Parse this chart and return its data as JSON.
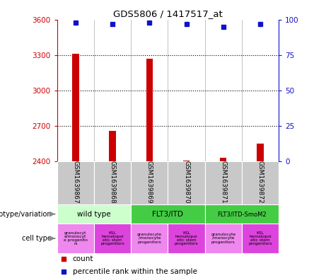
{
  "title": "GDS5806 / 1417517_at",
  "samples": [
    "GSM1639867",
    "GSM1639868",
    "GSM1639869",
    "GSM1639870",
    "GSM1639871",
    "GSM1639872"
  ],
  "counts": [
    3310,
    2660,
    3270,
    2405,
    2430,
    2550
  ],
  "percentile_ranks": [
    98,
    97,
    98,
    97,
    95,
    97
  ],
  "ylim_left": [
    2400,
    3600
  ],
  "yticks_left": [
    2400,
    2700,
    3000,
    3300,
    3600
  ],
  "ylim_right": [
    0,
    100
  ],
  "yticks_right": [
    0,
    25,
    50,
    75,
    100
  ],
  "bar_color": "#cc0000",
  "dot_color": "#1111cc",
  "axis_color_left": "#cc0000",
  "axis_color_right": "#1111cc",
  "plot_bg_color": "#ffffff",
  "grid_color": "#000000",
  "sample_bg_color": "#c8c8c8",
  "geno_spans": [
    {
      "label": "wild type",
      "start": 0,
      "end": 2,
      "color": "#ccffcc"
    },
    {
      "label": "FLT3/ITD",
      "start": 2,
      "end": 4,
      "color": "#44cc44"
    },
    {
      "label": "FLT3/ITD-SmoM2",
      "start": 4,
      "end": 6,
      "color": "#44cc44"
    }
  ],
  "cell_colors": [
    "#ee88ee",
    "#dd44dd",
    "#ee88ee",
    "#dd44dd",
    "#ee88ee",
    "#dd44dd"
  ],
  "cell_labels": [
    "granulocyt\ne/monocyt\ne progenito\nrs",
    "KSL\nhematopoi\netic stem\nprogenitors",
    "granulocyte\n/monocyte\nprogenitors",
    "KSL\nhematopoi\netic stem\nprogenitors",
    "granulocyte\n/monocyte\nprogenitors",
    "KSL\nhematopoi\netic stem\nprogenitors"
  ]
}
